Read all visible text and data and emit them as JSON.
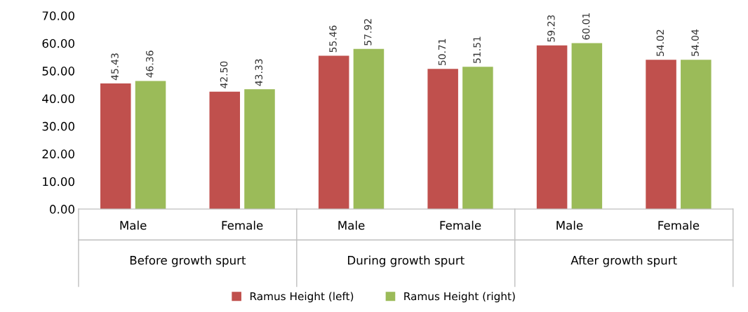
{
  "chart_data": {
    "type": "bar",
    "categories": [
      "Male",
      "Female",
      "Male",
      "Female",
      "Male",
      "Female"
    ],
    "annotations": [
      "Before growth spurt",
      "During growth spurt",
      "After growth spurt"
    ],
    "series": [
      {
        "name": "Ramus Height (left)",
        "color": "#c0504d",
        "values": [
          45.43,
          42.5,
          55.46,
          50.71,
          59.23,
          54.02
        ],
        "value_labels": [
          "45.43",
          "42.50",
          "55.46",
          "50.71",
          "59.23",
          "54.02"
        ]
      },
      {
        "name": "Ramus Height (right)",
        "color": "#9bbb59",
        "values": [
          46.36,
          43.33,
          57.92,
          51.51,
          60.01,
          54.04
        ],
        "value_labels": [
          "46.36",
          "43.33",
          "57.92",
          "51.51",
          "60.01",
          "54.04"
        ]
      }
    ],
    "ylim": [
      0,
      70
    ],
    "yticks": [
      {
        "value": 0,
        "label": "0.00"
      },
      {
        "value": 10,
        "label": "10.00"
      },
      {
        "value": 20,
        "label": "20.00"
      },
      {
        "value": 30,
        "label": "30.00"
      },
      {
        "value": 40,
        "label": "40.00"
      },
      {
        "value": 50,
        "label": "50.00"
      },
      {
        "value": 60,
        "label": "60.00"
      },
      {
        "value": 70,
        "label": "70.00"
      }
    ],
    "grid": false,
    "legend": "bottom"
  }
}
